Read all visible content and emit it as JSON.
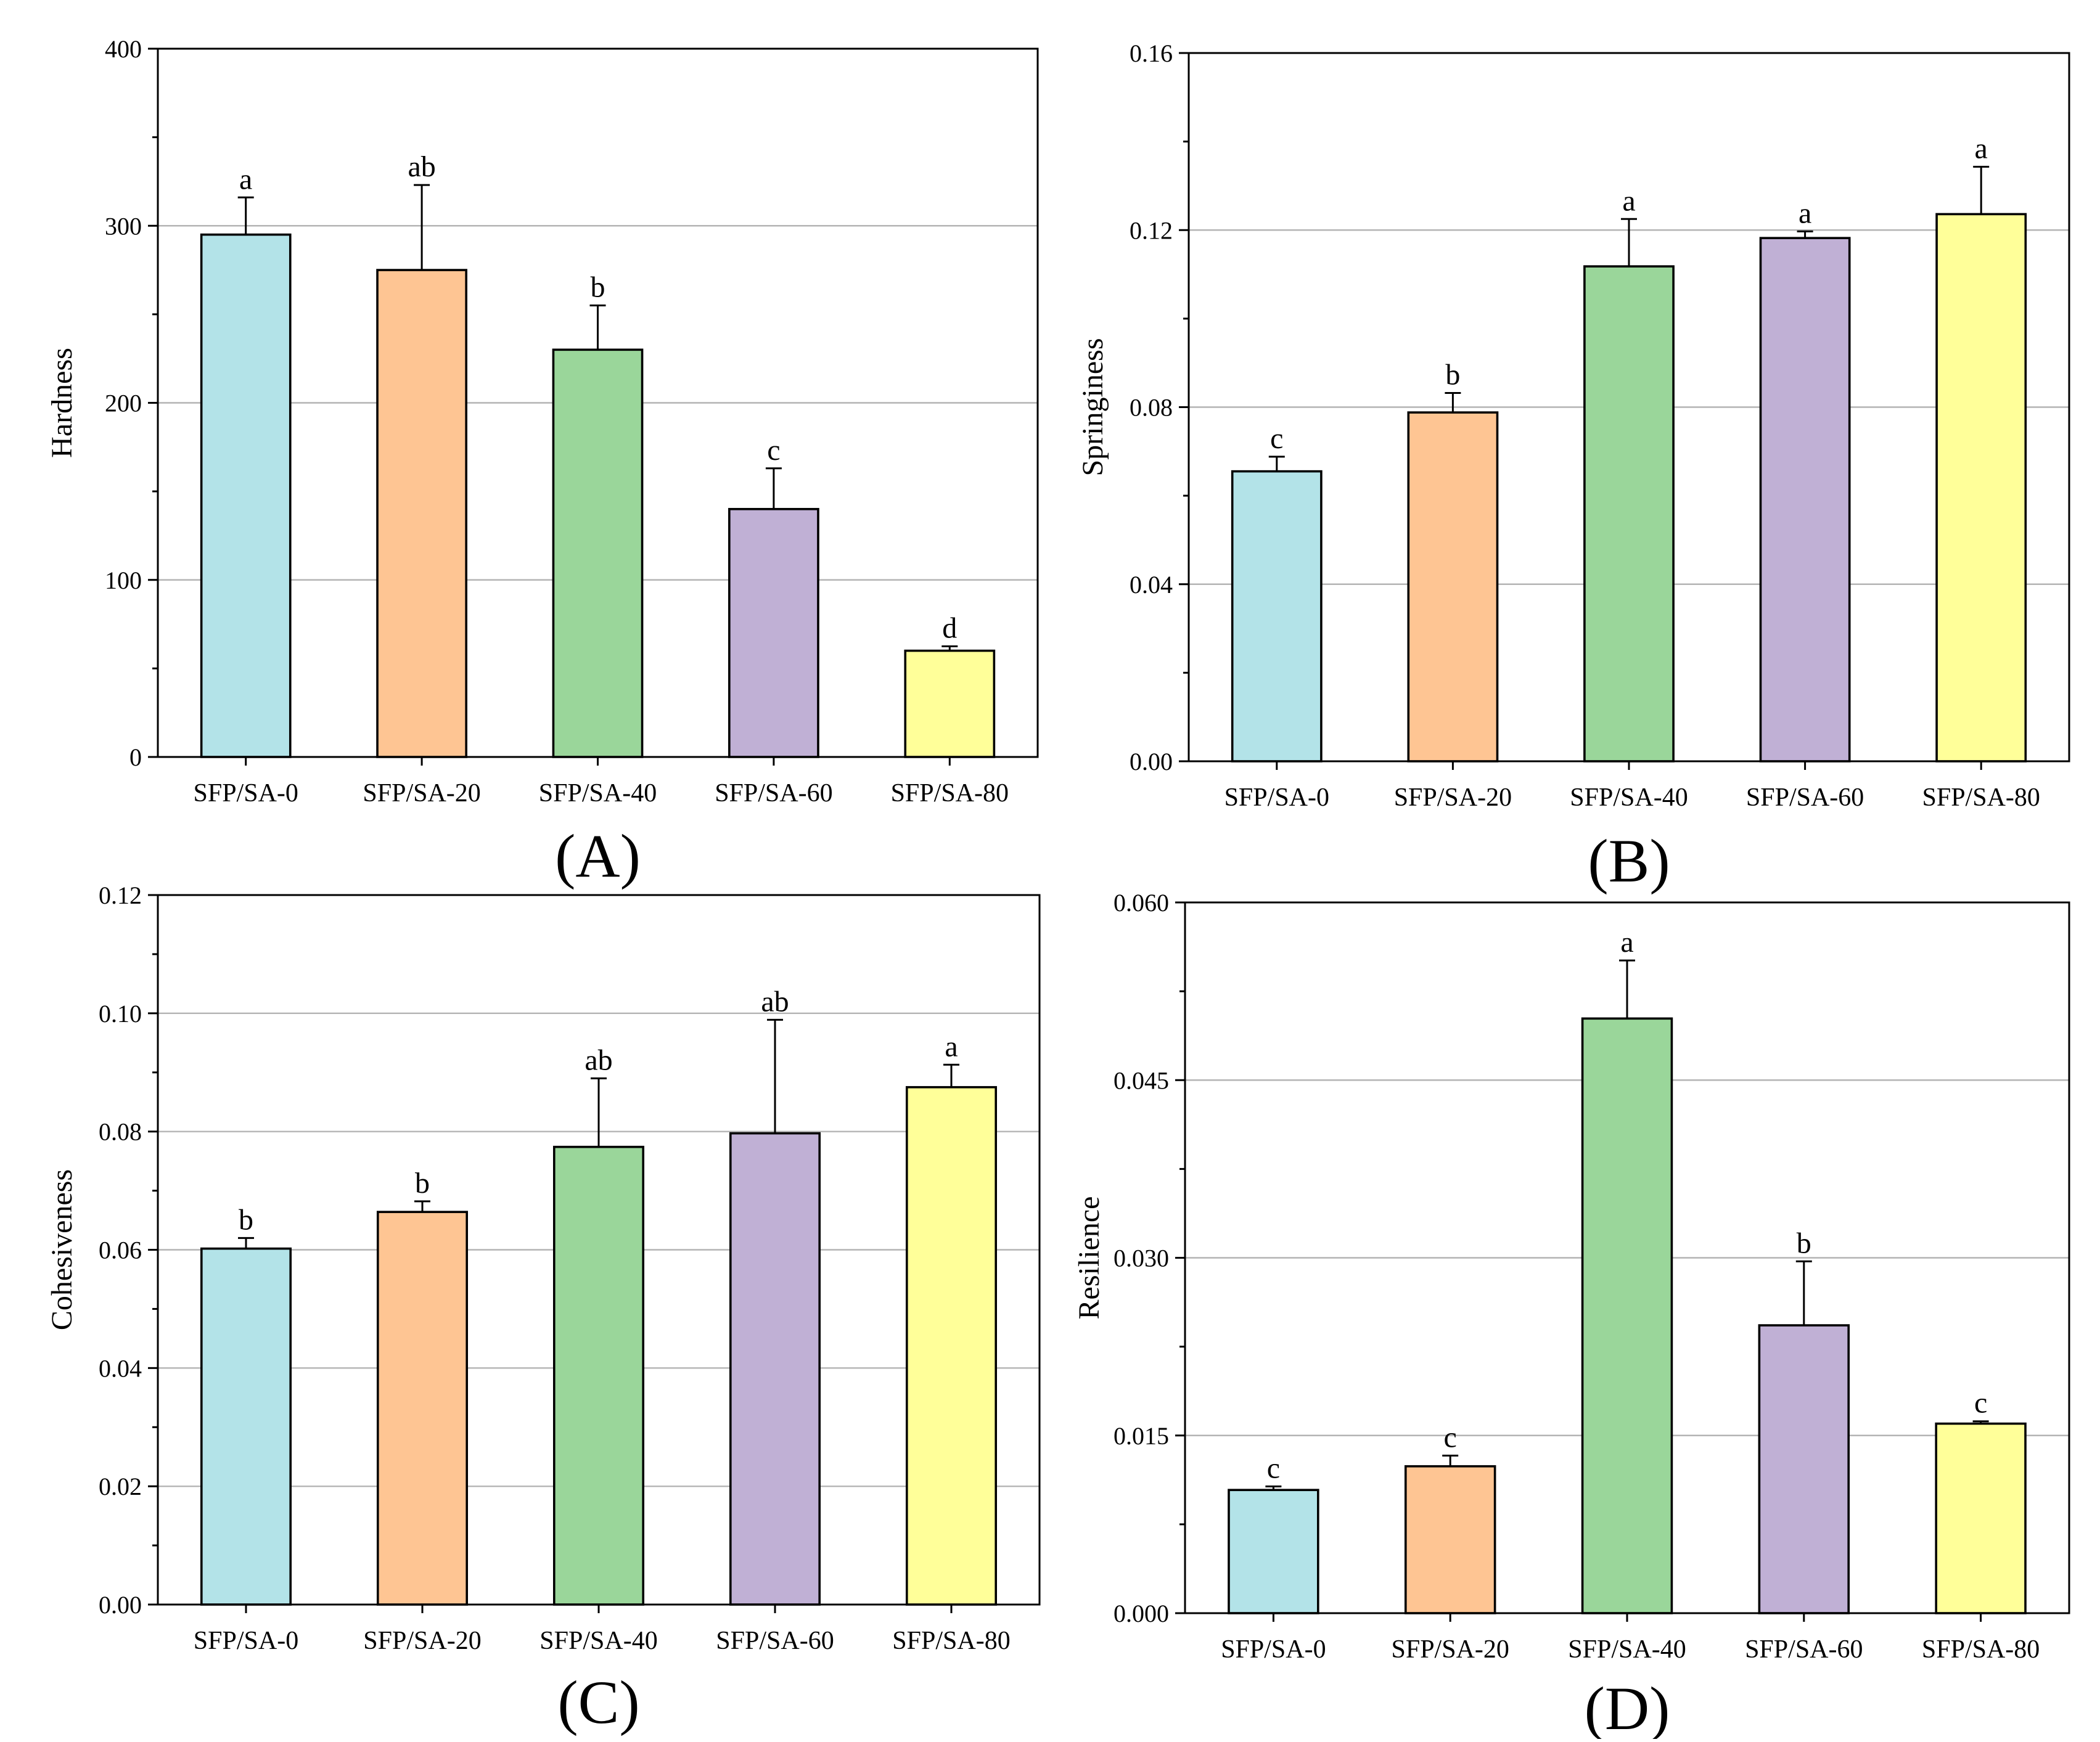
{
  "chart_data": [
    {
      "type": "bar",
      "panel": "(A)",
      "categories": [
        "SFP/SA-0",
        "SFP/SA-20",
        "SFP/SA-40",
        "SFP/SA-60",
        "SFP/SA-80"
      ],
      "values": [
        295,
        275,
        230,
        140,
        60
      ],
      "errors": [
        21,
        48,
        25,
        23,
        2.5
      ],
      "significance": [
        "a",
        "ab",
        "b",
        "c",
        "d"
      ],
      "ylabel": "Hardness",
      "xlabel": "",
      "ylim": [
        0,
        400
      ],
      "yticks": [
        "0",
        "100",
        "200",
        "300",
        "400"
      ],
      "grid": true
    },
    {
      "type": "bar",
      "panel": "(B)",
      "categories": [
        "SFP/SA-0",
        "SFP/SA-20",
        "SFP/SA-40",
        "SFP/SA-60",
        "SFP/SA-80"
      ],
      "values": [
        0.0655,
        0.0788,
        0.1118,
        0.1182,
        0.1236
      ],
      "errors": [
        0.0033,
        0.0044,
        0.0107,
        0.0015,
        0.0107
      ],
      "significance": [
        "c",
        "b",
        "a",
        "a",
        "a"
      ],
      "ylabel": "Springiness",
      "xlabel": "",
      "ylim": [
        0,
        0.16
      ],
      "yticks": [
        "0.00",
        "0.04",
        "0.08",
        "0.12",
        "0.16"
      ],
      "grid": true
    },
    {
      "type": "bar",
      "panel": "(C)",
      "categories": [
        "SFP/SA-0",
        "SFP/SA-20",
        "SFP/SA-40",
        "SFP/SA-60",
        "SFP/SA-80"
      ],
      "values": [
        0.0602,
        0.0664,
        0.0774,
        0.0797,
        0.0875
      ],
      "errors": [
        0.0018,
        0.0018,
        0.0116,
        0.0192,
        0.0038
      ],
      "significance": [
        "b",
        "b",
        "ab",
        "ab",
        "a"
      ],
      "ylabel": "Cohesiveness",
      "xlabel": "",
      "ylim": [
        0,
        0.12
      ],
      "yticks": [
        "0.00",
        "0.02",
        "0.04",
        "0.06",
        "0.08",
        "0.10",
        "0.12"
      ],
      "grid": true
    },
    {
      "type": "bar",
      "panel": "(D)",
      "categories": [
        "SFP/SA-0",
        "SFP/SA-20",
        "SFP/SA-40",
        "SFP/SA-60",
        "SFP/SA-80"
      ],
      "values": [
        0.0104,
        0.0124,
        0.0502,
        0.0243,
        0.016
      ],
      "errors": [
        0.0003,
        0.0009,
        0.0049,
        0.0054,
        0.0002
      ],
      "significance": [
        "c",
        "c",
        "a",
        "b",
        "c"
      ],
      "ylabel": "Resilience",
      "xlabel": "",
      "ylim": [
        0,
        0.06
      ],
      "yticks": [
        "0.000",
        "0.015",
        "0.030",
        "0.045",
        "0.060"
      ],
      "grid": true
    }
  ],
  "colors": {
    "bars": [
      "#b3e3e8",
      "#fec593",
      "#9ad69a",
      "#c0b0d5",
      "#ffff99"
    ],
    "grid": "#b4b4b4"
  }
}
